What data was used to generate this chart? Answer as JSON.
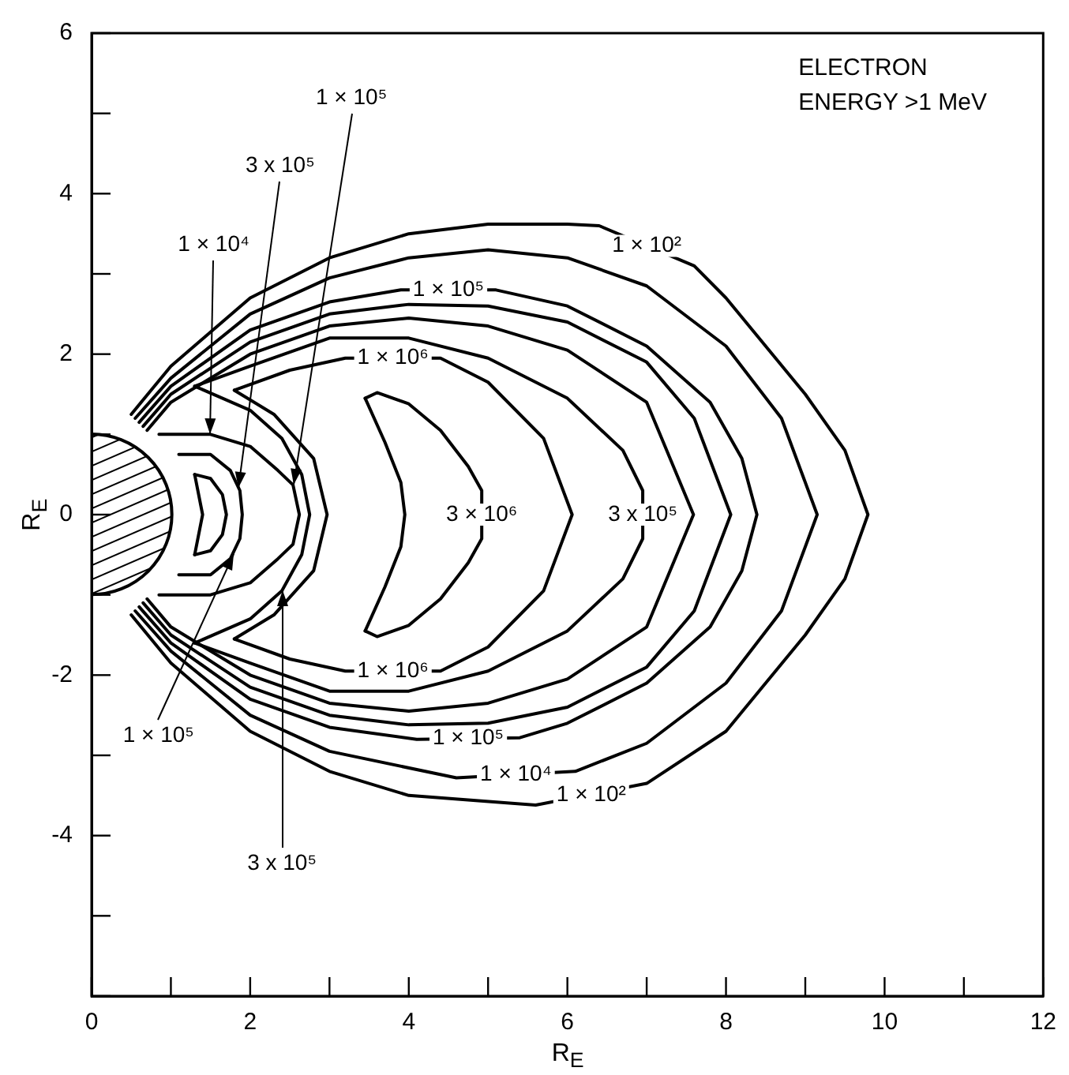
{
  "chart_data": {
    "type": "line",
    "title": "ELECTRON ENERGY >1 MeV",
    "xlabel": "R$_{E}$",
    "ylabel": "R$_{E}$",
    "xlim": [
      0,
      12
    ],
    "ylim": [
      -6,
      6
    ],
    "xticks": [
      0,
      {
        "value": 1,
        "label": null
      },
      2,
      {
        "value": 3,
        "label": null
      },
      4,
      {
        "value": 5,
        "label": null
      },
      6,
      {
        "value": 7,
        "label": null
      },
      8,
      {
        "value": 9,
        "label": null
      },
      10,
      {
        "value": 11,
        "label": null
      },
      12
    ],
    "yticks": [
      {
        "value": -6,
        "label": null
      },
      {
        "value": -5,
        "label": null
      },
      -4,
      {
        "value": -3,
        "label": null
      },
      -2,
      {
        "value": -1,
        "label": null
      },
      0,
      {
        "value": 1,
        "label": null
      },
      2,
      {
        "value": 3,
        "label": null
      },
      4,
      {
        "value": 5,
        "label": null
      },
      6
    ],
    "marker": "none",
    "line_style": "solid",
    "series": [
      {
        "color": "#000000",
        "x": [
          0.5,
          1,
          2,
          3,
          4,
          5,
          6,
          6.4,
          7.6,
          8,
          9,
          9.5,
          9.79,
          9.5,
          9,
          8,
          7,
          5.6,
          4,
          3,
          2,
          1,
          0.5
        ],
        "values": [
          1.25,
          1.85,
          2.7,
          3.2,
          3.5,
          3.62,
          3.62,
          3.6,
          3.1,
          2.7,
          1.5,
          0.8,
          0,
          -0.8,
          -1.5,
          -2.7,
          -3.35,
          -3.62,
          -3.5,
          -3.2,
          -2.7,
          -1.85,
          -1.25
        ]
      },
      {
        "color": "#000000",
        "x": [
          0.55,
          1,
          2,
          3,
          4,
          5,
          6,
          7,
          8,
          8.7,
          9.15,
          8.7,
          8,
          7,
          6.1,
          4.6,
          3,
          2,
          1,
          0.55
        ],
        "values": [
          1.2,
          1.7,
          2.5,
          2.95,
          3.2,
          3.3,
          3.2,
          2.85,
          2.1,
          1.2,
          0,
          -1.2,
          -2.1,
          -2.85,
          -3.2,
          -3.28,
          -2.95,
          -2.5,
          -1.7,
          -1.2
        ]
      },
      {
        "color": "#000000",
        "x": [
          0.6,
          1,
          2,
          3,
          3.9,
          5.1,
          6,
          7,
          7.8,
          8.2,
          8.39,
          8.2,
          7.8,
          7,
          6,
          5.4,
          4.1,
          3,
          2,
          1,
          0.6
        ],
        "values": [
          1.15,
          1.6,
          2.3,
          2.65,
          2.8,
          2.8,
          2.6,
          2.1,
          1.4,
          0.7,
          0,
          -0.7,
          -1.4,
          -2.1,
          -2.6,
          -2.78,
          -2.8,
          -2.65,
          -2.3,
          -1.6,
          -1.15
        ]
      },
      {
        "color": "#000000",
        "x": [
          0.65,
          1,
          2,
          3,
          4,
          5,
          6,
          7,
          7.6,
          8.06,
          7.6,
          7,
          6,
          5,
          4,
          3,
          2,
          1,
          0.65
        ],
        "values": [
          1.1,
          1.5,
          2.15,
          2.5,
          2.62,
          2.6,
          2.4,
          1.9,
          1.2,
          0,
          -1.2,
          -1.9,
          -2.4,
          -2.6,
          -2.62,
          -2.5,
          -2.15,
          -1.5,
          -1.1
        ]
      },
      {
        "color": "#000000",
        "x": [
          0.7,
          1,
          2,
          3,
          4,
          5,
          6,
          7,
          7.59,
          7,
          6,
          5,
          4,
          3,
          2,
          1,
          0.7
        ],
        "values": [
          1.05,
          1.4,
          2.0,
          2.35,
          2.45,
          2.35,
          2.05,
          1.4,
          0,
          -1.4,
          -2.05,
          -2.35,
          -2.45,
          -2.35,
          -2.0,
          -1.4,
          -1.05
        ]
      },
      {
        "color": "#000000",
        "x": [
          1.3,
          2,
          3,
          4,
          5,
          6,
          6.7,
          6.95,
          6.95,
          6.7,
          6,
          5,
          4,
          3,
          2,
          1.3
        ],
        "values": [
          1.6,
          1.85,
          2.2,
          2.2,
          1.95,
          1.45,
          0.8,
          0.3,
          -0.3,
          -0.8,
          -1.45,
          -1.95,
          -2.2,
          -2.2,
          -1.85,
          -1.6
        ]
      },
      {
        "color": "#000000",
        "x": [
          1.3,
          2.0,
          2.4,
          2.65,
          2.75,
          2.65,
          2.4,
          2.0,
          1.3
        ],
        "values": [
          1.6,
          1.3,
          0.95,
          0.5,
          0,
          -0.5,
          -0.95,
          -1.3,
          -1.6
        ]
      },
      {
        "color": "#000000",
        "x": [
          1.8,
          2.5,
          3.2,
          4.4,
          5,
          5.7,
          6.06,
          5.7,
          5,
          4.4,
          3.2,
          2.5,
          1.8
        ],
        "values": [
          1.55,
          1.8,
          1.95,
          1.95,
          1.65,
          0.95,
          0,
          -0.95,
          -1.65,
          -1.95,
          -1.95,
          -1.8,
          -1.55
        ]
      },
      {
        "color": "#000000",
        "x": [
          1.8,
          2.3,
          2.8,
          2.97,
          2.8,
          2.3,
          1.8
        ],
        "values": [
          1.55,
          1.25,
          0.7,
          0,
          -0.7,
          -1.25,
          -1.55
        ]
      },
      {
        "color": "#000000",
        "x": [
          3.45,
          3.6,
          4.0,
          4.4,
          4.75,
          4.92,
          4.92,
          4.75,
          4.4,
          4.0,
          3.6,
          3.45
        ],
        "values": [
          1.45,
          1.52,
          1.38,
          1.05,
          0.6,
          0.3,
          -0.3,
          -0.6,
          -1.05,
          -1.38,
          -1.52,
          -1.45
        ]
      },
      {
        "color": "#000000",
        "x": [
          3.45,
          3.7,
          3.9,
          3.95,
          3.9,
          3.7,
          3.45
        ],
        "values": [
          1.45,
          0.9,
          0.4,
          0,
          -0.4,
          -0.9,
          -1.45
        ]
      },
      {
        "color": "#000000",
        "x": [
          0.85,
          1.5,
          2.0,
          2.35,
          2.54,
          2.62,
          2.54,
          2.35,
          2.0,
          1.5,
          0.85
        ],
        "values": [
          1.0,
          1.0,
          0.85,
          0.55,
          0.37,
          0,
          -0.37,
          -0.55,
          -0.85,
          -1.0,
          -1.0
        ]
      },
      {
        "color": "#000000",
        "x": [
          1.1,
          1.5,
          1.75,
          1.87,
          1.9,
          1.87,
          1.75,
          1.5,
          1.1
        ],
        "values": [
          0.75,
          0.75,
          0.55,
          0.3,
          0,
          -0.3,
          -0.55,
          -0.75,
          -0.75
        ]
      },
      {
        "color": "#000000",
        "x": [
          1.3,
          1.5,
          1.65,
          1.7,
          1.65,
          1.5,
          1.3
        ],
        "values": [
          0.5,
          0.45,
          0.25,
          0,
          -0.25,
          -0.45,
          -0.5
        ]
      },
      {
        "color": "#000000",
        "x": [
          1.3,
          1.4,
          1.3
        ],
        "values": [
          0.5,
          0,
          -0.5
        ]
      }
    ],
    "annotations": [
      {
        "text": "1 × 10²",
        "x": 7.0,
        "y": 3.35
      },
      {
        "text": "1 × 10⁵",
        "x": 4.5,
        "y": 2.8
      },
      {
        "text": "1 × 10⁶",
        "x": 3.8,
        "y": 1.95
      },
      {
        "text": "3 × 10⁶",
        "x": 4.92,
        "y": 0
      },
      {
        "text": "3 x 10⁵",
        "x": 6.95,
        "y": 0
      },
      {
        "text": "1 × 10⁶",
        "x": 3.8,
        "y": -1.95
      },
      {
        "text": "1 × 10⁵",
        "x": 4.75,
        "y": -2.79
      },
      {
        "text": "1 × 10⁴",
        "x": 5.35,
        "y": -3.24
      },
      {
        "text": "1 × 10²",
        "x": 6.3,
        "y": -3.49
      },
      {
        "text": "1 × 10⁴",
        "x": 1.5,
        "y": 1.0
      },
      {
        "text": "3 x 10⁵",
        "x": 1.86,
        "y": 0.33
      },
      {
        "text": "1 × 10⁵",
        "x": 2.54,
        "y": 0.37
      },
      {
        "text": "1 × 10⁵",
        "x": 1.8,
        "y": -0.49
      },
      {
        "text": "3 x 10⁵",
        "x": 2.4,
        "y": -0.95
      }
    ]
  }
}
